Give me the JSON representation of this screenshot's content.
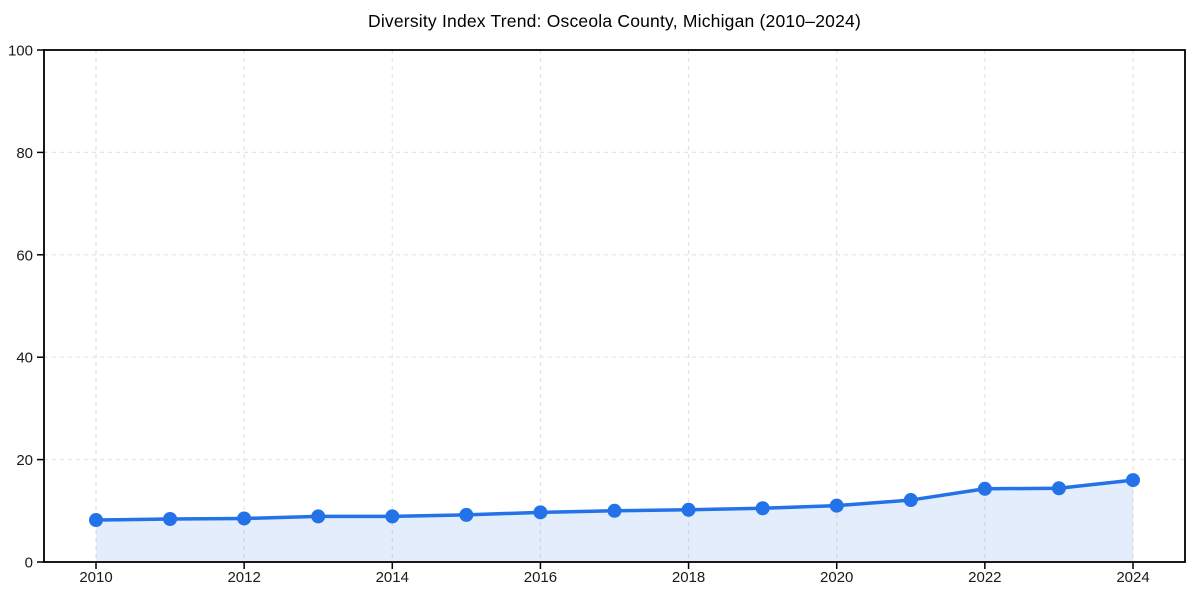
{
  "chart_data": {
    "type": "line",
    "title": "Diversity Index Trend: Osceola County, Michigan (2010–2024)",
    "x": [
      2010,
      2011,
      2012,
      2013,
      2014,
      2015,
      2016,
      2017,
      2018,
      2019,
      2020,
      2021,
      2022,
      2023,
      2024
    ],
    "series": [
      {
        "name": "Diversity Index",
        "values": [
          8.2,
          8.4,
          8.5,
          8.9,
          8.9,
          9.2,
          9.7,
          10.0,
          10.2,
          10.5,
          11.0,
          12.1,
          14.3,
          14.4,
          16.0
        ]
      }
    ],
    "xticks": [
      2010,
      2012,
      2014,
      2016,
      2018,
      2020,
      2022,
      2024
    ],
    "yticks": [
      0,
      20,
      40,
      60,
      80,
      100
    ],
    "ylim": [
      0,
      100
    ],
    "xlabel": "",
    "ylabel": "",
    "grid": true,
    "grid_style": "dashed",
    "legend": "none",
    "marker": "circle",
    "area_fill": true,
    "colors": {
      "line": "#2372e8",
      "fill": "rgba(35, 114, 232, 0.13)",
      "grid": "#e3e3e3",
      "spine": "#000000",
      "tick": "#000000",
      "tick_label": "#1a1a1a",
      "title": "#000000"
    }
  }
}
